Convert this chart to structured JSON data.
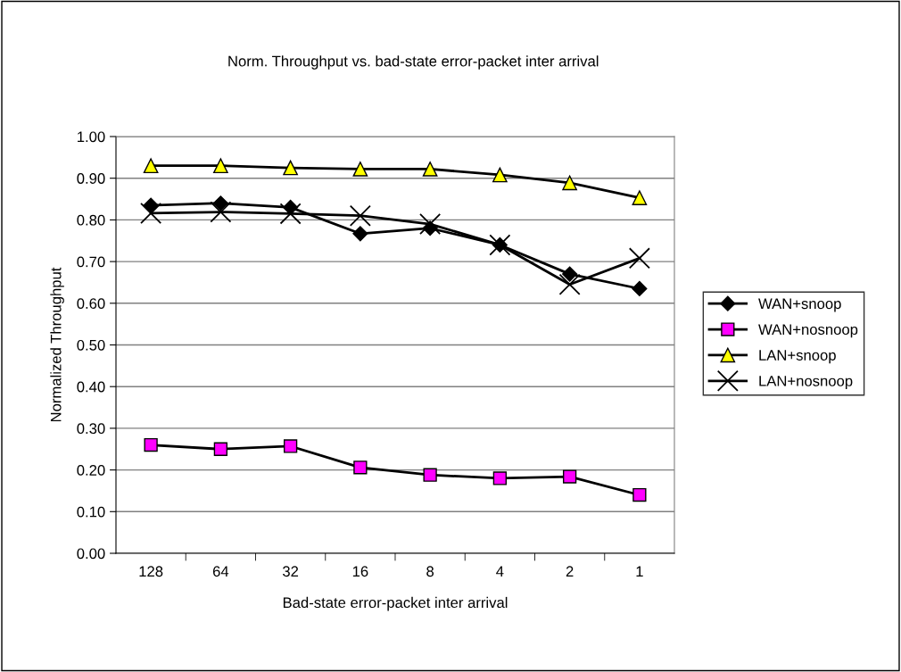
{
  "chart_data": {
    "type": "line",
    "title": "Norm. Throughput vs. bad-state error-packet inter arrival",
    "xlabel": "Bad-state error-packet inter arrival",
    "ylabel": "Normalized Throughput",
    "categories": [
      "128",
      "64",
      "32",
      "16",
      "8",
      "4",
      "2",
      "1"
    ],
    "series": [
      {
        "name": "WAN+snoop",
        "color": "#000000",
        "marker": "diamond",
        "values": [
          0.835,
          0.84,
          0.83,
          0.767,
          0.78,
          0.74,
          0.67,
          0.635
        ]
      },
      {
        "name": "WAN+nosnoop",
        "color": "#ff00ff",
        "marker": "square",
        "values": [
          0.26,
          0.25,
          0.257,
          0.206,
          0.188,
          0.18,
          0.184,
          0.14
        ]
      },
      {
        "name": "LAN+snoop",
        "color": "#ffff00",
        "marker": "triangle",
        "values": [
          0.93,
          0.93,
          0.925,
          0.922,
          0.922,
          0.908,
          0.889,
          0.853
        ]
      },
      {
        "name": "LAN+nosnoop",
        "color": "#000000",
        "marker": "cross",
        "values": [
          0.816,
          0.819,
          0.815,
          0.81,
          0.79,
          0.74,
          0.645,
          0.708
        ]
      }
    ],
    "ylim": [
      0,
      1
    ],
    "yticks": [
      {
        "value": 0,
        "label": "0.00"
      },
      {
        "value": 0.1,
        "label": "0.10"
      },
      {
        "value": 0.2,
        "label": "0.20"
      },
      {
        "value": 0.3,
        "label": "0.30"
      },
      {
        "value": 0.4,
        "label": "0.40"
      },
      {
        "value": 0.5,
        "label": "0.50"
      },
      {
        "value": 0.6,
        "label": "0.60"
      },
      {
        "value": 0.7,
        "label": "0.70"
      },
      {
        "value": 0.8,
        "label": "0.80"
      },
      {
        "value": 0.9,
        "label": "0.90"
      },
      {
        "value": 1,
        "label": "1.00"
      }
    ],
    "grid": "y",
    "legend": "right"
  }
}
